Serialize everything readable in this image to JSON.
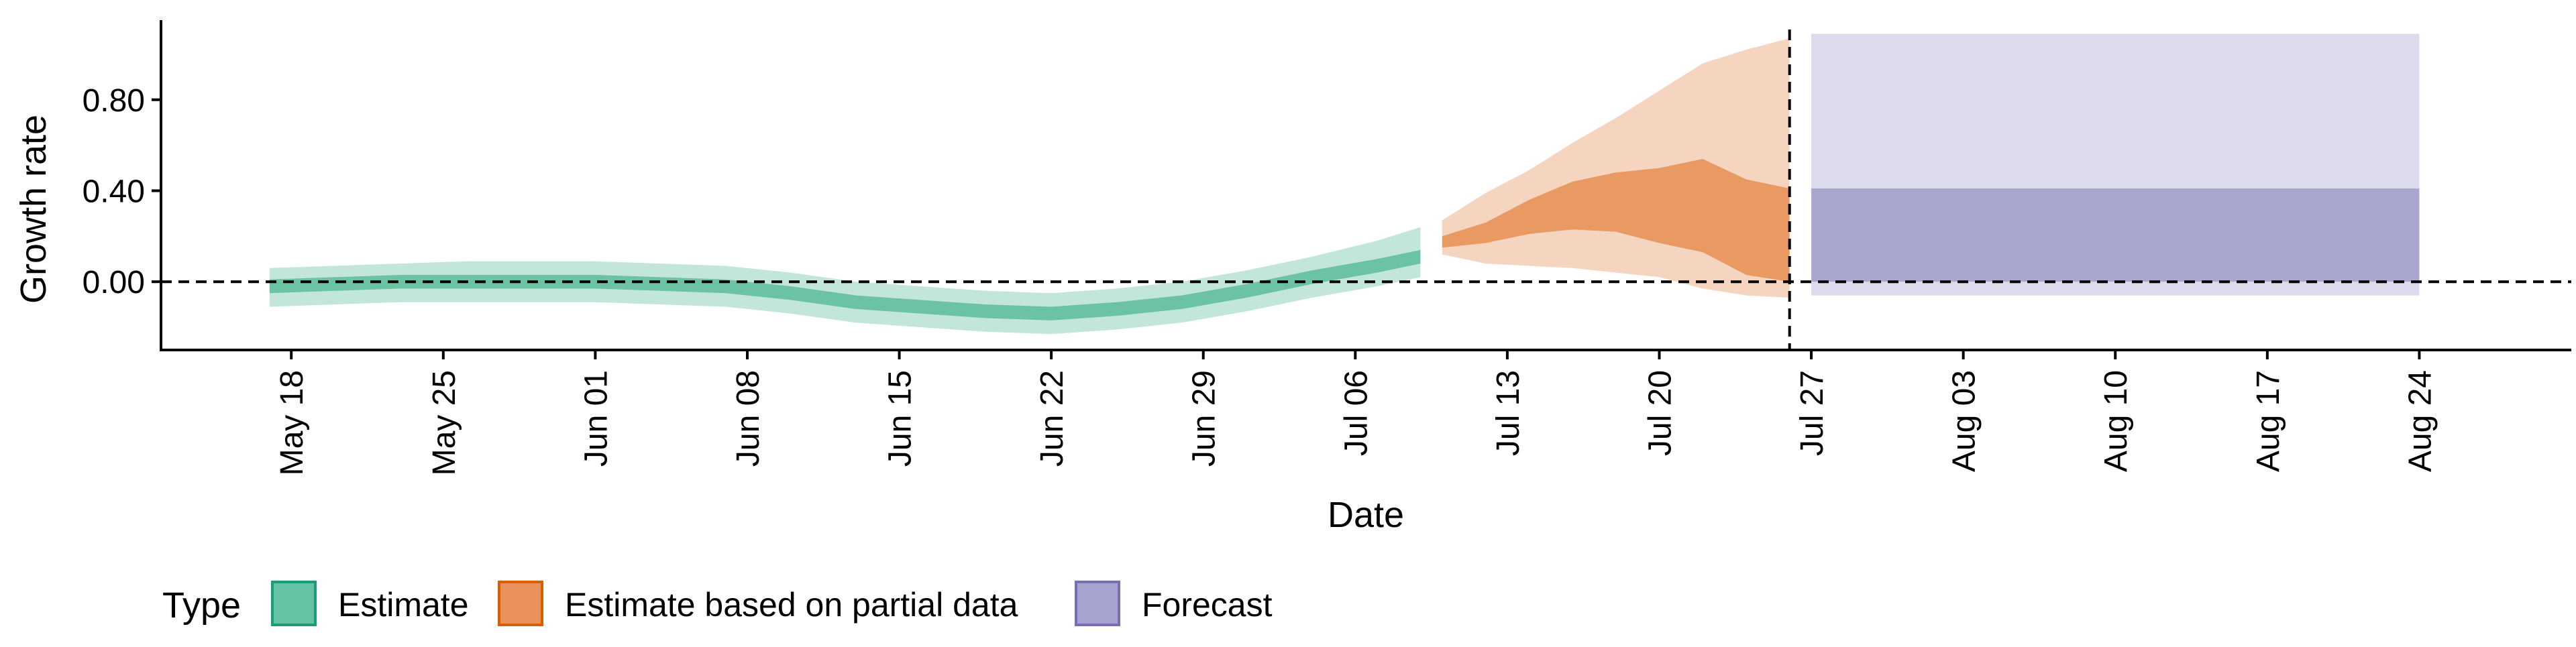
{
  "chart_data": {
    "type": "area",
    "title": "",
    "xlabel": "Date",
    "ylabel": "Growth rate",
    "x_ticks": [
      "May 18",
      "May 25",
      "Jun 01",
      "Jun 08",
      "Jun 15",
      "Jun 22",
      "Jun 29",
      "Jul 06",
      "Jul 13",
      "Jul 20",
      "Jul 27",
      "Aug 03",
      "Aug 10",
      "Aug 17",
      "Aug 24"
    ],
    "y_ticks": [
      "0.00",
      "0.40",
      "0.80"
    ],
    "xlim": [
      "2020-05-12",
      "2020-08-31"
    ],
    "ylim": [
      -0.3,
      1.15
    ],
    "grid": false,
    "reference_lines": [
      {
        "axis": "y",
        "value": 0,
        "style": "dashed"
      },
      {
        "axis": "x",
        "value": "2020-07-26",
        "style": "dashed"
      }
    ],
    "legend": {
      "title": "Type",
      "position": "bottom-left",
      "entries": [
        {
          "label": "Estimate",
          "color": "#66c2a5"
        },
        {
          "label": "Estimate based on partial data",
          "color": "#e8915a"
        },
        {
          "label": "Forecast",
          "color": "#a6a3d1"
        }
      ]
    },
    "series": [
      {
        "name": "Estimate",
        "colors": {
          "outer": "#c3e6da",
          "inner": "#6cc3a4"
        },
        "dates": [
          "2020-05-17",
          "2020-05-20",
          "2020-05-23",
          "2020-05-26",
          "2020-05-29",
          "2020-06-01",
          "2020-06-04",
          "2020-06-07",
          "2020-06-10",
          "2020-06-13",
          "2020-06-16",
          "2020-06-19",
          "2020-06-22",
          "2020-06-25",
          "2020-06-28",
          "2020-07-01",
          "2020-07-04",
          "2020-07-07",
          "2020-07-09"
        ],
        "lower_90": [
          -0.11,
          -0.1,
          -0.09,
          -0.09,
          -0.09,
          -0.09,
          -0.1,
          -0.11,
          -0.14,
          -0.18,
          -0.2,
          -0.22,
          -0.23,
          -0.21,
          -0.18,
          -0.13,
          -0.07,
          -0.02,
          0.02
        ],
        "lower_50": [
          -0.05,
          -0.04,
          -0.03,
          -0.03,
          -0.03,
          -0.03,
          -0.04,
          -0.05,
          -0.08,
          -0.12,
          -0.14,
          -0.16,
          -0.17,
          -0.15,
          -0.12,
          -0.07,
          -0.01,
          0.04,
          0.08
        ],
        "upper_50": [
          0.01,
          0.02,
          0.03,
          0.03,
          0.03,
          0.03,
          0.02,
          0.01,
          -0.02,
          -0.06,
          -0.08,
          -0.1,
          -0.11,
          -0.09,
          -0.06,
          -0.01,
          0.05,
          0.1,
          0.14
        ],
        "upper_90": [
          0.06,
          0.07,
          0.08,
          0.09,
          0.09,
          0.09,
          0.08,
          0.07,
          0.04,
          0.0,
          -0.02,
          -0.04,
          -0.05,
          -0.03,
          0.0,
          0.05,
          0.11,
          0.18,
          0.24
        ]
      },
      {
        "name": "Estimate based on partial data",
        "colors": {
          "outer": "#f5d5bf",
          "inner": "#e89a62"
        },
        "dates": [
          "2020-07-10",
          "2020-07-12",
          "2020-07-14",
          "2020-07-16",
          "2020-07-18",
          "2020-07-20",
          "2020-07-22",
          "2020-07-24",
          "2020-07-26"
        ],
        "lower_90": [
          0.12,
          0.08,
          0.07,
          0.06,
          0.04,
          0.02,
          -0.03,
          -0.06,
          -0.07
        ],
        "lower_50": [
          0.15,
          0.17,
          0.21,
          0.23,
          0.22,
          0.17,
          0.13,
          0.03,
          0.0
        ],
        "upper_50": [
          0.2,
          0.26,
          0.36,
          0.44,
          0.48,
          0.5,
          0.54,
          0.45,
          0.41
        ],
        "upper_90": [
          0.27,
          0.39,
          0.49,
          0.61,
          0.72,
          0.84,
          0.96,
          1.02,
          1.07
        ]
      },
      {
        "name": "Forecast",
        "colors": {
          "outer": "#dcdbec",
          "inner": "#a9a6d0"
        },
        "dates": [
          "2020-07-27",
          "2020-08-24"
        ],
        "lower_90": [
          -0.06,
          -0.06
        ],
        "lower_50": [
          0.0,
          0.0
        ],
        "upper_50": [
          0.41,
          0.41
        ],
        "upper_90": [
          1.09,
          1.09
        ]
      }
    ]
  }
}
